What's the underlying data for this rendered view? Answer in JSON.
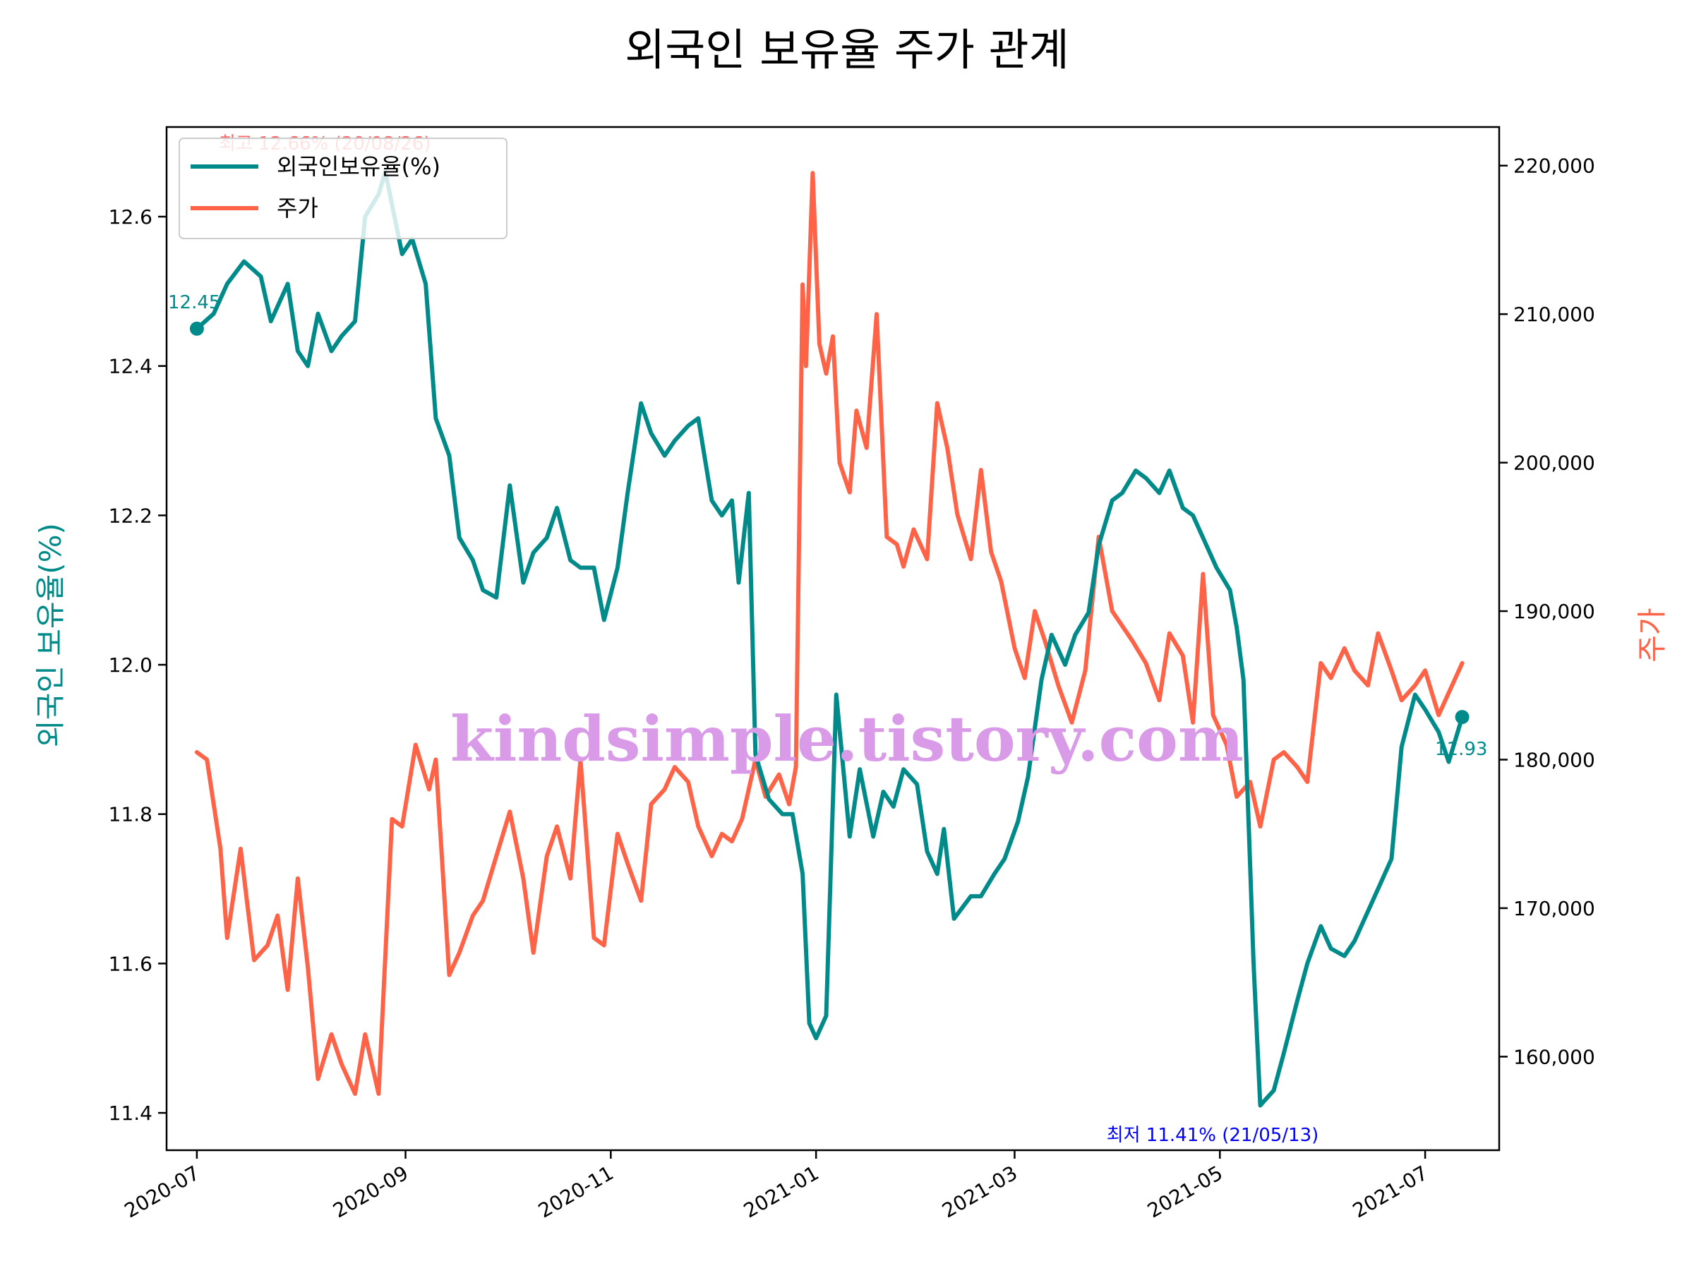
{
  "colors": {
    "ratio": "#008b8a",
    "price": "#ff6347",
    "max_annotation": "#ff4d4d",
    "min_annotation": "#0000ff",
    "watermark": "#d99be8",
    "axis": "#000000"
  },
  "chart_data": {
    "type": "line",
    "title": "외국인 보유율 주가 관계",
    "ylabel_left": "외국인 보유율(%)",
    "ylabel_right": "주가",
    "x_range": [
      "2020-06-22",
      "2021-07-23"
    ],
    "y_left_range": [
      11.35,
      12.72
    ],
    "y_right_range": [
      153700,
      222600
    ],
    "x_ticks": [
      "2020-07",
      "2020-09",
      "2020-11",
      "2021-01",
      "2021-03",
      "2021-05",
      "2021-07"
    ],
    "x_tick_dates": [
      "2020-07-01",
      "2020-09-01",
      "2020-11-01",
      "2021-01-01",
      "2021-03-01",
      "2021-05-01",
      "2021-07-01"
    ],
    "y_left_ticks": [
      "11.4",
      "11.6",
      "11.8",
      "12.0",
      "12.2",
      "12.4",
      "12.6"
    ],
    "y_left_tick_values": [
      11.4,
      11.6,
      11.8,
      12.0,
      12.2,
      12.4,
      12.6
    ],
    "y_right_ticks": [
      "160,000",
      "170,000",
      "180,000",
      "190,000",
      "200,000",
      "210,000",
      "220,000"
    ],
    "y_right_tick_values": [
      160000,
      170000,
      180000,
      190000,
      200000,
      210000,
      220000
    ],
    "legend_position": "upper left",
    "series": [
      {
        "name": "외국인보유율(%)",
        "axis": "left",
        "points": [
          [
            "2020-07-01",
            12.45
          ],
          [
            "2020-07-06",
            12.47
          ],
          [
            "2020-07-10",
            12.51
          ],
          [
            "2020-07-15",
            12.54
          ],
          [
            "2020-07-20",
            12.52
          ],
          [
            "2020-07-23",
            12.46
          ],
          [
            "2020-07-28",
            12.51
          ],
          [
            "2020-07-31",
            12.42
          ],
          [
            "2020-08-03",
            12.4
          ],
          [
            "2020-08-06",
            12.47
          ],
          [
            "2020-08-10",
            12.42
          ],
          [
            "2020-08-13",
            12.44
          ],
          [
            "2020-08-17",
            12.46
          ],
          [
            "2020-08-20",
            12.6
          ],
          [
            "2020-08-24",
            12.63
          ],
          [
            "2020-08-26",
            12.66
          ],
          [
            "2020-08-31",
            12.55
          ],
          [
            "2020-09-03",
            12.57
          ],
          [
            "2020-09-07",
            12.51
          ],
          [
            "2020-09-10",
            12.33
          ],
          [
            "2020-09-14",
            12.28
          ],
          [
            "2020-09-17",
            12.17
          ],
          [
            "2020-09-21",
            12.14
          ],
          [
            "2020-09-24",
            12.1
          ],
          [
            "2020-09-28",
            12.09
          ],
          [
            "2020-10-02",
            12.24
          ],
          [
            "2020-10-06",
            12.11
          ],
          [
            "2020-10-09",
            12.15
          ],
          [
            "2020-10-13",
            12.17
          ],
          [
            "2020-10-16",
            12.21
          ],
          [
            "2020-10-20",
            12.14
          ],
          [
            "2020-10-23",
            12.13
          ],
          [
            "2020-10-27",
            12.13
          ],
          [
            "2020-10-30",
            12.06
          ],
          [
            "2020-11-03",
            12.13
          ],
          [
            "2020-11-06",
            12.23
          ],
          [
            "2020-11-10",
            12.35
          ],
          [
            "2020-11-13",
            12.31
          ],
          [
            "2020-11-17",
            12.28
          ],
          [
            "2020-11-20",
            12.3
          ],
          [
            "2020-11-24",
            12.32
          ],
          [
            "2020-11-27",
            12.33
          ],
          [
            "2020-12-01",
            12.22
          ],
          [
            "2020-12-04",
            12.2
          ],
          [
            "2020-12-07",
            12.22
          ],
          [
            "2020-12-09",
            12.11
          ],
          [
            "2020-12-12",
            12.23
          ],
          [
            "2020-12-14",
            11.88
          ],
          [
            "2020-12-18",
            11.82
          ],
          [
            "2020-12-22",
            11.8
          ],
          [
            "2020-12-25",
            11.8
          ],
          [
            "2020-12-28",
            11.72
          ],
          [
            "2020-12-30",
            11.52
          ],
          [
            "2021-01-01",
            11.5
          ],
          [
            "2021-01-04",
            11.53
          ],
          [
            "2021-01-07",
            11.96
          ],
          [
            "2021-01-11",
            11.77
          ],
          [
            "2021-01-14",
            11.86
          ],
          [
            "2021-01-18",
            11.77
          ],
          [
            "2021-01-21",
            11.83
          ],
          [
            "2021-01-24",
            11.81
          ],
          [
            "2021-01-27",
            11.86
          ],
          [
            "2021-01-31",
            11.84
          ],
          [
            "2021-02-03",
            11.75
          ],
          [
            "2021-02-06",
            11.72
          ],
          [
            "2021-02-08",
            11.78
          ],
          [
            "2021-02-11",
            11.66
          ],
          [
            "2021-02-16",
            11.69
          ],
          [
            "2021-02-19",
            11.69
          ],
          [
            "2021-02-23",
            11.72
          ],
          [
            "2021-02-26",
            11.74
          ],
          [
            "2021-03-02",
            11.79
          ],
          [
            "2021-03-05",
            11.85
          ],
          [
            "2021-03-09",
            11.98
          ],
          [
            "2021-03-12",
            12.04
          ],
          [
            "2021-03-16",
            12.0
          ],
          [
            "2021-03-19",
            12.04
          ],
          [
            "2021-03-23",
            12.07
          ],
          [
            "2021-03-26",
            12.16
          ],
          [
            "2021-03-30",
            12.22
          ],
          [
            "2021-04-02",
            12.23
          ],
          [
            "2021-04-06",
            12.26
          ],
          [
            "2021-04-09",
            12.25
          ],
          [
            "2021-04-13",
            12.23
          ],
          [
            "2021-04-16",
            12.26
          ],
          [
            "2021-04-20",
            12.21
          ],
          [
            "2021-04-23",
            12.2
          ],
          [
            "2021-04-27",
            12.16
          ],
          [
            "2021-04-30",
            12.13
          ],
          [
            "2021-05-04",
            12.1
          ],
          [
            "2021-05-06",
            12.05
          ],
          [
            "2021-05-08",
            11.98
          ],
          [
            "2021-05-10",
            11.73
          ],
          [
            "2021-05-11",
            11.6
          ],
          [
            "2021-05-13",
            11.41
          ],
          [
            "2021-05-17",
            11.43
          ],
          [
            "2021-05-20",
            11.48
          ],
          [
            "2021-05-24",
            11.55
          ],
          [
            "2021-05-27",
            11.6
          ],
          [
            "2021-05-31",
            11.65
          ],
          [
            "2021-06-03",
            11.62
          ],
          [
            "2021-06-07",
            11.61
          ],
          [
            "2021-06-10",
            11.63
          ],
          [
            "2021-06-14",
            11.67
          ],
          [
            "2021-06-17",
            11.7
          ],
          [
            "2021-06-21",
            11.74
          ],
          [
            "2021-06-24",
            11.89
          ],
          [
            "2021-06-28",
            11.96
          ],
          [
            "2021-07-01",
            11.94
          ],
          [
            "2021-07-05",
            11.91
          ],
          [
            "2021-07-08",
            11.87
          ],
          [
            "2021-07-12",
            11.93
          ]
        ]
      },
      {
        "name": "주가",
        "axis": "right",
        "points": [
          [
            "2020-07-01",
            180500
          ],
          [
            "2020-07-04",
            180000
          ],
          [
            "2020-07-08",
            174000
          ],
          [
            "2020-07-10",
            168000
          ],
          [
            "2020-07-14",
            174000
          ],
          [
            "2020-07-18",
            166500
          ],
          [
            "2020-07-22",
            167500
          ],
          [
            "2020-07-25",
            169500
          ],
          [
            "2020-07-28",
            164500
          ],
          [
            "2020-07-31",
            172000
          ],
          [
            "2020-08-03",
            166000
          ],
          [
            "2020-08-06",
            158500
          ],
          [
            "2020-08-10",
            161500
          ],
          [
            "2020-08-13",
            159500
          ],
          [
            "2020-08-17",
            157500
          ],
          [
            "2020-08-20",
            161500
          ],
          [
            "2020-08-24",
            157500
          ],
          [
            "2020-08-28",
            176000
          ],
          [
            "2020-08-31",
            175500
          ],
          [
            "2020-09-04",
            181000
          ],
          [
            "2020-09-08",
            178000
          ],
          [
            "2020-09-10",
            180000
          ],
          [
            "2020-09-14",
            165500
          ],
          [
            "2020-09-17",
            167000
          ],
          [
            "2020-09-21",
            169500
          ],
          [
            "2020-09-24",
            170500
          ],
          [
            "2020-09-28",
            173500
          ],
          [
            "2020-10-02",
            176500
          ],
          [
            "2020-10-06",
            172000
          ],
          [
            "2020-10-09",
            167000
          ],
          [
            "2020-10-13",
            173500
          ],
          [
            "2020-10-16",
            175500
          ],
          [
            "2020-10-20",
            172000
          ],
          [
            "2020-10-23",
            180000
          ],
          [
            "2020-10-27",
            168000
          ],
          [
            "2020-10-30",
            167500
          ],
          [
            "2020-11-03",
            175000
          ],
          [
            "2020-11-06",
            173000
          ],
          [
            "2020-11-10",
            170500
          ],
          [
            "2020-11-13",
            177000
          ],
          [
            "2020-11-17",
            178000
          ],
          [
            "2020-11-20",
            179500
          ],
          [
            "2020-11-24",
            178500
          ],
          [
            "2020-11-27",
            175500
          ],
          [
            "2020-12-01",
            173500
          ],
          [
            "2020-12-04",
            175000
          ],
          [
            "2020-12-07",
            174500
          ],
          [
            "2020-12-10",
            176000
          ],
          [
            "2020-12-14",
            180000
          ],
          [
            "2020-12-17",
            177500
          ],
          [
            "2020-12-21",
            179000
          ],
          [
            "2020-12-24",
            177000
          ],
          [
            "2020-12-26",
            179500
          ],
          [
            "2020-12-28",
            212000
          ],
          [
            "2020-12-29",
            206500
          ],
          [
            "2020-12-31",
            219500
          ],
          [
            "2021-01-02",
            208000
          ],
          [
            "2021-01-04",
            206000
          ],
          [
            "2021-01-06",
            208500
          ],
          [
            "2021-01-08",
            200000
          ],
          [
            "2021-01-11",
            198000
          ],
          [
            "2021-01-13",
            203500
          ],
          [
            "2021-01-16",
            201000
          ],
          [
            "2021-01-19",
            210000
          ],
          [
            "2021-01-22",
            195000
          ],
          [
            "2021-01-25",
            194500
          ],
          [
            "2021-01-27",
            193000
          ],
          [
            "2021-01-30",
            195500
          ],
          [
            "2021-02-03",
            193500
          ],
          [
            "2021-02-06",
            204000
          ],
          [
            "2021-02-09",
            201000
          ],
          [
            "2021-02-12",
            196500
          ],
          [
            "2021-02-16",
            193500
          ],
          [
            "2021-02-19",
            199500
          ],
          [
            "2021-02-22",
            194000
          ],
          [
            "2021-02-25",
            192000
          ],
          [
            "2021-03-01",
            187500
          ],
          [
            "2021-03-04",
            185500
          ],
          [
            "2021-03-07",
            190000
          ],
          [
            "2021-03-10",
            188000
          ],
          [
            "2021-03-14",
            185000
          ],
          [
            "2021-03-18",
            182500
          ],
          [
            "2021-03-22",
            186000
          ],
          [
            "2021-03-26",
            195000
          ],
          [
            "2021-03-30",
            190000
          ],
          [
            "2021-04-02",
            189000
          ],
          [
            "2021-04-05",
            188000
          ],
          [
            "2021-04-09",
            186500
          ],
          [
            "2021-04-13",
            184000
          ],
          [
            "2021-04-16",
            188500
          ],
          [
            "2021-04-20",
            187000
          ],
          [
            "2021-04-23",
            182500
          ],
          [
            "2021-04-26",
            192500
          ],
          [
            "2021-04-29",
            183000
          ],
          [
            "2021-05-03",
            181000
          ],
          [
            "2021-05-06",
            177500
          ],
          [
            "2021-05-10",
            178500
          ],
          [
            "2021-05-13",
            175500
          ],
          [
            "2021-05-17",
            180000
          ],
          [
            "2021-05-20",
            180500
          ],
          [
            "2021-05-24",
            179500
          ],
          [
            "2021-05-27",
            178500
          ],
          [
            "2021-05-31",
            186500
          ],
          [
            "2021-06-03",
            185500
          ],
          [
            "2021-06-07",
            187500
          ],
          [
            "2021-06-10",
            186000
          ],
          [
            "2021-06-14",
            185000
          ],
          [
            "2021-06-17",
            188500
          ],
          [
            "2021-06-21",
            186000
          ],
          [
            "2021-06-24",
            184000
          ],
          [
            "2021-06-28",
            185000
          ],
          [
            "2021-07-01",
            186000
          ],
          [
            "2021-07-05",
            183000
          ],
          [
            "2021-07-08",
            184500
          ],
          [
            "2021-07-12",
            186500
          ]
        ]
      }
    ],
    "annotations": {
      "start_label": "12.45",
      "end_label": "11.93",
      "max_label": "최고 12.66% (20/08/26)",
      "min_label": "최저 11.41% (21/05/13)"
    },
    "watermark": "kindsimple.tistory.com"
  }
}
